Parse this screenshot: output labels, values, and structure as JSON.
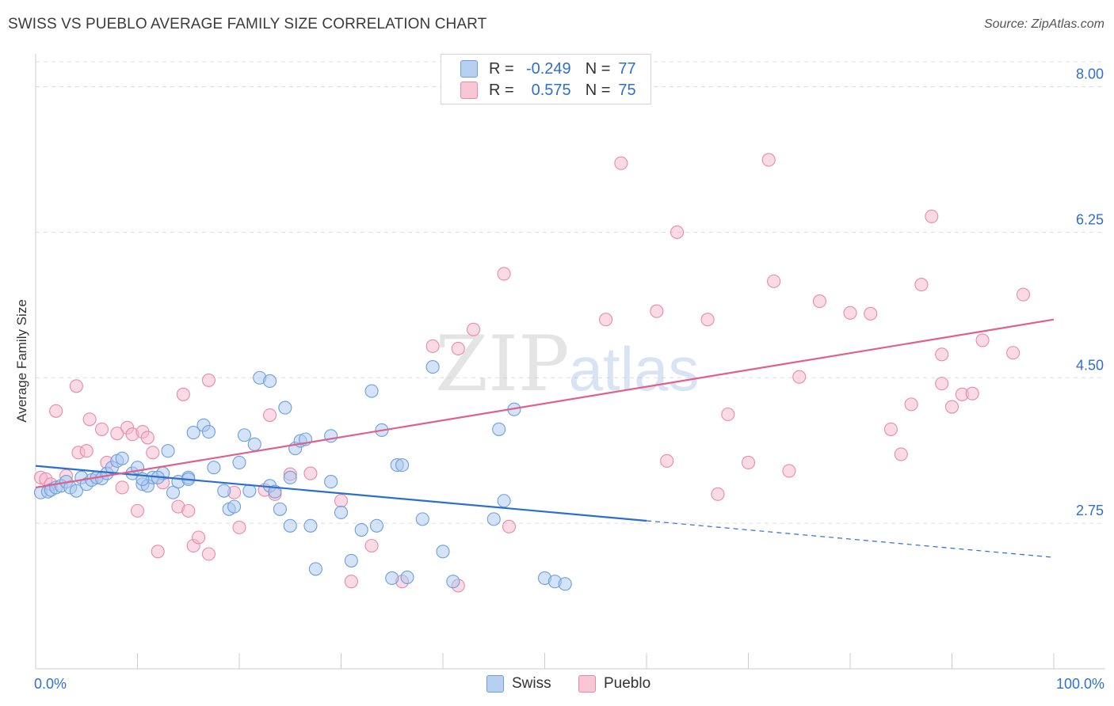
{
  "title": "SWISS VS PUEBLO AVERAGE FAMILY SIZE CORRELATION CHART",
  "source": "Source: ZipAtlas.com",
  "watermark": {
    "zip": "ZIP",
    "atlas": "atlas"
  },
  "colors": {
    "swiss_fill": "#a9c8ef",
    "swiss_stroke": "#6d9fdc",
    "swiss_line": "#2a6fd0",
    "pueblo_fill": "#f5b8cb",
    "pueblo_stroke": "#e88aa8",
    "pueblo_line": "#e0608c",
    "tick_label": "#2f6fd0",
    "grid": "#dddddd"
  },
  "legend": {
    "r_label": "R =",
    "n_label": "N =",
    "swiss": {
      "r": "-0.249",
      "n": "77"
    },
    "pueblo": {
      "r": "0.575",
      "n": "75"
    }
  },
  "bottom_legend": {
    "swiss": "Swiss",
    "pueblo": "Pueblo"
  },
  "chart_data": {
    "type": "scatter",
    "xlabel": "",
    "ylabel": "Average Family Size",
    "x_tick_labels": {
      "min": "0.0%",
      "max": "100.0%"
    },
    "xlim": [
      0,
      100
    ],
    "ylim": [
      1.0,
      8.3
    ],
    "y_ticks": [
      {
        "value": 8.0,
        "label": "8.00"
      },
      {
        "value": 6.25,
        "label": "6.25"
      },
      {
        "value": 4.5,
        "label": "4.50"
      },
      {
        "value": 2.75,
        "label": "2.75"
      }
    ],
    "series": [
      {
        "name": "Swiss",
        "r": -0.249,
        "n": 77,
        "trend": {
          "x0": 0,
          "y0": 3.44,
          "x1": 60,
          "y1": 2.78,
          "dashed_to_x": 100,
          "dashed_to_y": 2.34
        },
        "points": [
          [
            0.5,
            3.12
          ],
          [
            1.2,
            3.13
          ],
          [
            1.5,
            3.15
          ],
          [
            2,
            3.18
          ],
          [
            2.5,
            3.2
          ],
          [
            3,
            3.25
          ],
          [
            3.4,
            3.18
          ],
          [
            4,
            3.14
          ],
          [
            4.5,
            3.3
          ],
          [
            5,
            3.22
          ],
          [
            5.5,
            3.27
          ],
          [
            6,
            3.3
          ],
          [
            6.5,
            3.29
          ],
          [
            7,
            3.35
          ],
          [
            7.5,
            3.42
          ],
          [
            8,
            3.5
          ],
          [
            8.5,
            3.53
          ],
          [
            9.5,
            3.35
          ],
          [
            10,
            3.42
          ],
          [
            10.5,
            3.22
          ],
          [
            11,
            3.2
          ],
          [
            11.5,
            3.3
          ],
          [
            12.5,
            3.35
          ],
          [
            13,
            3.62
          ],
          [
            13.5,
            3.12
          ],
          [
            14,
            3.25
          ],
          [
            15,
            3.3
          ],
          [
            15.5,
            3.84
          ],
          [
            16.5,
            3.93
          ],
          [
            17,
            3.85
          ],
          [
            17.5,
            3.42
          ],
          [
            18.5,
            3.14
          ],
          [
            19,
            2.92
          ],
          [
            19.5,
            2.95
          ],
          [
            20,
            3.48
          ],
          [
            20.5,
            3.81
          ],
          [
            21,
            3.14
          ],
          [
            21.5,
            3.7
          ],
          [
            22,
            4.5
          ],
          [
            23,
            3.2
          ],
          [
            23.5,
            3.13
          ],
          [
            24,
            2.92
          ],
          [
            23,
            4.46
          ],
          [
            24.5,
            4.14
          ],
          [
            25,
            2.72
          ],
          [
            25.5,
            3.65
          ],
          [
            26,
            3.74
          ],
          [
            26.5,
            3.76
          ],
          [
            27,
            2.72
          ],
          [
            27.5,
            2.2
          ],
          [
            29,
            3.8
          ],
          [
            30,
            2.88
          ],
          [
            31,
            2.3
          ],
          [
            32,
            2.67
          ],
          [
            33,
            4.34
          ],
          [
            33.5,
            2.72
          ],
          [
            34,
            3.87
          ],
          [
            35,
            2.09
          ],
          [
            35.5,
            3.45
          ],
          [
            36,
            3.45
          ],
          [
            36.5,
            2.1
          ],
          [
            38,
            2.8
          ],
          [
            39,
            4.63
          ],
          [
            40,
            2.41
          ],
          [
            41,
            2.05
          ],
          [
            45,
            2.8
          ],
          [
            45.5,
            3.88
          ],
          [
            46,
            3.02
          ],
          [
            47,
            4.12
          ],
          [
            50,
            2.09
          ],
          [
            51,
            2.05
          ],
          [
            52,
            2.02
          ],
          [
            10.5,
            3.28
          ],
          [
            12,
            3.3
          ],
          [
            15,
            3.28
          ],
          [
            25,
            3.3
          ],
          [
            29,
            3.25
          ]
        ]
      },
      {
        "name": "Pueblo",
        "r": 0.575,
        "n": 75,
        "trend": {
          "x0": 0,
          "y0": 3.18,
          "x1": 100,
          "y1": 5.2
        },
        "points": [
          [
            0.5,
            3.3
          ],
          [
            1,
            3.28
          ],
          [
            1.5,
            3.22
          ],
          [
            2,
            4.1
          ],
          [
            3,
            3.32
          ],
          [
            4,
            4.4
          ],
          [
            4.2,
            3.6
          ],
          [
            5,
            3.62
          ],
          [
            5.3,
            4.0
          ],
          [
            6,
            3.3
          ],
          [
            6.5,
            3.88
          ],
          [
            7,
            3.48
          ],
          [
            8,
            3.83
          ],
          [
            8.5,
            3.18
          ],
          [
            9,
            3.9
          ],
          [
            9.5,
            3.82
          ],
          [
            10,
            2.9
          ],
          [
            10.5,
            3.85
          ],
          [
            11,
            3.78
          ],
          [
            11.5,
            3.6
          ],
          [
            12,
            2.41
          ],
          [
            12.5,
            3.24
          ],
          [
            14,
            2.95
          ],
          [
            14.5,
            4.3
          ],
          [
            15,
            2.9
          ],
          [
            15.5,
            2.48
          ],
          [
            16,
            2.58
          ],
          [
            17,
            4.47
          ],
          [
            17,
            2.38
          ],
          [
            19.5,
            3.12
          ],
          [
            20,
            2.7
          ],
          [
            22.5,
            3.15
          ],
          [
            23,
            4.05
          ],
          [
            23.5,
            3.1
          ],
          [
            25,
            3.34
          ],
          [
            27,
            3.35
          ],
          [
            30,
            3.02
          ],
          [
            31,
            2.05
          ],
          [
            33,
            2.48
          ],
          [
            36,
            2.05
          ],
          [
            39,
            4.88
          ],
          [
            41.5,
            2.0
          ],
          [
            41.5,
            4.85
          ],
          [
            43,
            5.08
          ],
          [
            46,
            5.75
          ],
          [
            46.5,
            2.71
          ],
          [
            56,
            5.2
          ],
          [
            57.5,
            7.08
          ],
          [
            61,
            5.3
          ],
          [
            62,
            3.5
          ],
          [
            63,
            6.25
          ],
          [
            66,
            5.2
          ],
          [
            67,
            3.1
          ],
          [
            68,
            4.06
          ],
          [
            70,
            3.48
          ],
          [
            72,
            7.12
          ],
          [
            72.5,
            5.66
          ],
          [
            74,
            3.38
          ],
          [
            75,
            4.51
          ],
          [
            77,
            5.42
          ],
          [
            80,
            5.28
          ],
          [
            82,
            5.27
          ],
          [
            84,
            3.88
          ],
          [
            85,
            3.58
          ],
          [
            86,
            4.18
          ],
          [
            87,
            5.62
          ],
          [
            88,
            6.44
          ],
          [
            89,
            4.78
          ],
          [
            89,
            4.43
          ],
          [
            90,
            4.15
          ],
          [
            91,
            4.3
          ],
          [
            92,
            4.31
          ],
          [
            93,
            4.95
          ],
          [
            96,
            4.8
          ],
          [
            97,
            5.5
          ]
        ]
      }
    ]
  }
}
